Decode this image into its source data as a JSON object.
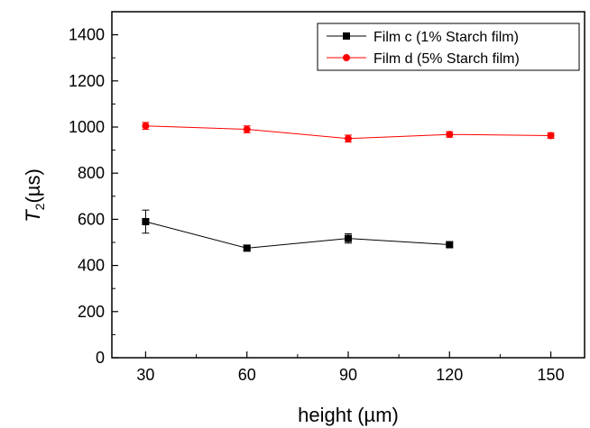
{
  "chart_data": {
    "type": "line",
    "xlabel": "height (µm)",
    "ylabel_main": "T",
    "ylabel_sub": "2",
    "ylabel_unit": "(µs)",
    "xlim": [
      20,
      160
    ],
    "ylim": [
      0,
      1500
    ],
    "xticks": [
      30,
      60,
      90,
      120,
      150
    ],
    "yticks": [
      0,
      200,
      400,
      600,
      800,
      1000,
      1200,
      1400
    ],
    "grid": false,
    "legend_position": "top-right",
    "series": [
      {
        "name": "Film c (1% Starch film)",
        "color": "#000000",
        "marker": "square",
        "x": [
          30,
          60,
          90,
          120
        ],
        "y": [
          590,
          475,
          517,
          490
        ],
        "err": [
          50,
          12,
          20,
          10
        ]
      },
      {
        "name": "Film d (5% Starch film)",
        "color": "#ff0000",
        "marker": "circle",
        "x": [
          30,
          60,
          90,
          120,
          150
        ],
        "y": [
          1005,
          990,
          950,
          968,
          963
        ],
        "err": [
          15,
          15,
          15,
          12,
          12
        ]
      }
    ]
  }
}
